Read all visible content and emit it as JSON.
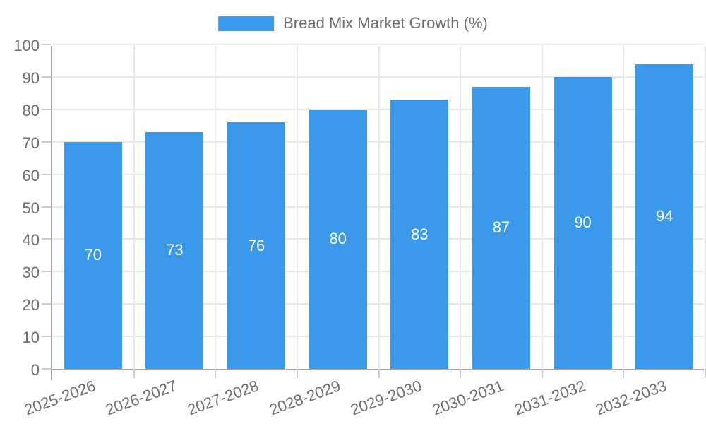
{
  "chart_data": {
    "type": "bar",
    "title": "Bread Mix Market Growth (%)",
    "legend": {
      "position": "top",
      "entries": [
        {
          "label": "Bread Mix Market Growth (%)",
          "color": "#3B99EC"
        }
      ]
    },
    "categories": [
      "2025-2026",
      "2026-2027",
      "2027-2028",
      "2028-2029",
      "2029-2030",
      "2030-2031",
      "2031-2032",
      "2032-2033"
    ],
    "values": [
      70,
      73,
      76,
      80,
      83,
      87,
      90,
      94
    ],
    "value_labels_shown": true,
    "xlabel": "",
    "ylabel": "",
    "ylim": [
      0,
      100
    ],
    "ytick_step": 10,
    "yticks": [
      0,
      10,
      20,
      30,
      40,
      50,
      60,
      70,
      80,
      90,
      100
    ],
    "grid": true,
    "x_label_rotation_deg": -20,
    "colors": {
      "bar": "#3B99EC",
      "value_label": "#FFFFFF",
      "axis_text": "#6E6E6E",
      "gridline": "#E8E8E8",
      "axis_line": "#A8A8A8",
      "tick": "#CCCCCC",
      "background": "#FFFFFF"
    }
  }
}
